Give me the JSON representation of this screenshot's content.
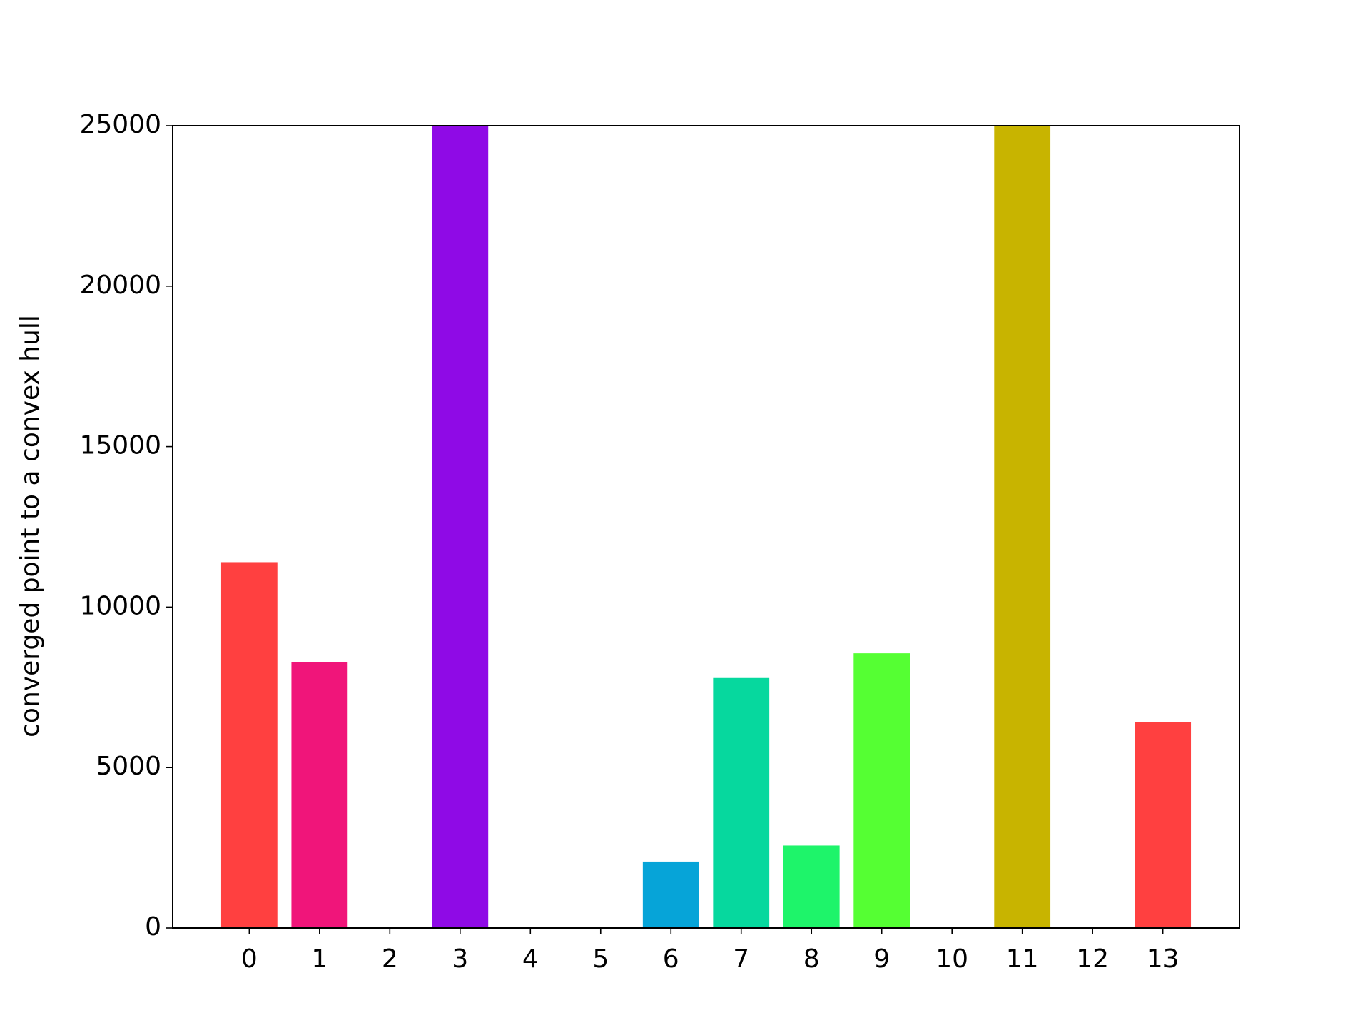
{
  "chart_data": {
    "type": "bar",
    "y_label": "converged point to a convex hull",
    "categories": [
      "0",
      "1",
      "2",
      "3",
      "4",
      "5",
      "6",
      "7",
      "8",
      "9",
      "10",
      "11",
      "12",
      "13"
    ],
    "values": [
      11400,
      8290,
      0,
      25000,
      0,
      0,
      2070,
      7790,
      2570,
      8560,
      0,
      25000,
      0,
      6410
    ],
    "colors": [
      "#ff4040",
      "#f0157a",
      null,
      "#8f0ae6",
      null,
      null,
      "#06a4d8",
      "#06d89e",
      "#1ef46a",
      "#55ff33",
      null,
      "#c8b400",
      null,
      "#ff4040"
    ],
    "ylim": [
      0,
      25000
    ],
    "yticks": [
      0,
      5000,
      10000,
      15000,
      20000,
      25000
    ],
    "grid": false
  }
}
